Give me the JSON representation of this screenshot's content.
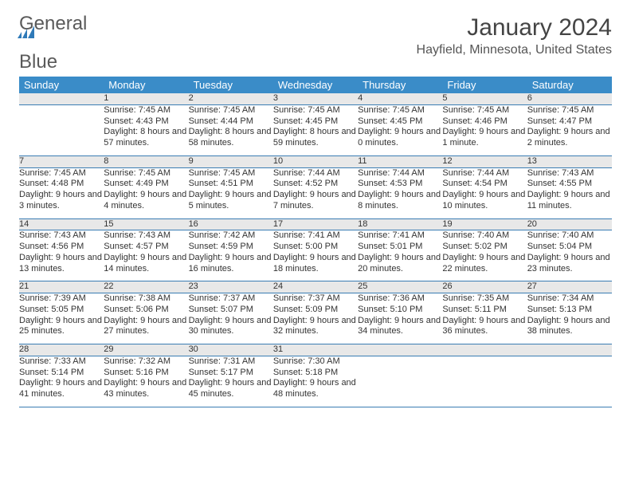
{
  "logo": {
    "text1": "General",
    "text2": "Blue"
  },
  "header": {
    "title": "January 2024",
    "location": "Hayfield, Minnesota, United States"
  },
  "colors": {
    "header_bg": "#3a8cc8",
    "header_text": "#ffffff",
    "daynum_bg": "#e8e8e8",
    "daynum_text": "#6a6a6a",
    "row_border": "#3a7db3",
    "body_text": "#333333",
    "logo_blue": "#2f7ab8",
    "logo_gray": "#5a5a5a"
  },
  "dayNames": [
    "Sunday",
    "Monday",
    "Tuesday",
    "Wednesday",
    "Thursday",
    "Friday",
    "Saturday"
  ],
  "weeks": [
    {
      "nums": [
        "",
        "1",
        "2",
        "3",
        "4",
        "5",
        "6"
      ],
      "cells": [
        {
          "sunrise": "",
          "sunset": "",
          "daylight": ""
        },
        {
          "sunrise": "Sunrise: 7:45 AM",
          "sunset": "Sunset: 4:43 PM",
          "daylight": "Daylight: 8 hours and 57 minutes."
        },
        {
          "sunrise": "Sunrise: 7:45 AM",
          "sunset": "Sunset: 4:44 PM",
          "daylight": "Daylight: 8 hours and 58 minutes."
        },
        {
          "sunrise": "Sunrise: 7:45 AM",
          "sunset": "Sunset: 4:45 PM",
          "daylight": "Daylight: 8 hours and 59 minutes."
        },
        {
          "sunrise": "Sunrise: 7:45 AM",
          "sunset": "Sunset: 4:45 PM",
          "daylight": "Daylight: 9 hours and 0 minutes."
        },
        {
          "sunrise": "Sunrise: 7:45 AM",
          "sunset": "Sunset: 4:46 PM",
          "daylight": "Daylight: 9 hours and 1 minute."
        },
        {
          "sunrise": "Sunrise: 7:45 AM",
          "sunset": "Sunset: 4:47 PM",
          "daylight": "Daylight: 9 hours and 2 minutes."
        }
      ]
    },
    {
      "nums": [
        "7",
        "8",
        "9",
        "10",
        "11",
        "12",
        "13"
      ],
      "cells": [
        {
          "sunrise": "Sunrise: 7:45 AM",
          "sunset": "Sunset: 4:48 PM",
          "daylight": "Daylight: 9 hours and 3 minutes."
        },
        {
          "sunrise": "Sunrise: 7:45 AM",
          "sunset": "Sunset: 4:49 PM",
          "daylight": "Daylight: 9 hours and 4 minutes."
        },
        {
          "sunrise": "Sunrise: 7:45 AM",
          "sunset": "Sunset: 4:51 PM",
          "daylight": "Daylight: 9 hours and 5 minutes."
        },
        {
          "sunrise": "Sunrise: 7:44 AM",
          "sunset": "Sunset: 4:52 PM",
          "daylight": "Daylight: 9 hours and 7 minutes."
        },
        {
          "sunrise": "Sunrise: 7:44 AM",
          "sunset": "Sunset: 4:53 PM",
          "daylight": "Daylight: 9 hours and 8 minutes."
        },
        {
          "sunrise": "Sunrise: 7:44 AM",
          "sunset": "Sunset: 4:54 PM",
          "daylight": "Daylight: 9 hours and 10 minutes."
        },
        {
          "sunrise": "Sunrise: 7:43 AM",
          "sunset": "Sunset: 4:55 PM",
          "daylight": "Daylight: 9 hours and 11 minutes."
        }
      ]
    },
    {
      "nums": [
        "14",
        "15",
        "16",
        "17",
        "18",
        "19",
        "20"
      ],
      "cells": [
        {
          "sunrise": "Sunrise: 7:43 AM",
          "sunset": "Sunset: 4:56 PM",
          "daylight": "Daylight: 9 hours and 13 minutes."
        },
        {
          "sunrise": "Sunrise: 7:43 AM",
          "sunset": "Sunset: 4:57 PM",
          "daylight": "Daylight: 9 hours and 14 minutes."
        },
        {
          "sunrise": "Sunrise: 7:42 AM",
          "sunset": "Sunset: 4:59 PM",
          "daylight": "Daylight: 9 hours and 16 minutes."
        },
        {
          "sunrise": "Sunrise: 7:41 AM",
          "sunset": "Sunset: 5:00 PM",
          "daylight": "Daylight: 9 hours and 18 minutes."
        },
        {
          "sunrise": "Sunrise: 7:41 AM",
          "sunset": "Sunset: 5:01 PM",
          "daylight": "Daylight: 9 hours and 20 minutes."
        },
        {
          "sunrise": "Sunrise: 7:40 AM",
          "sunset": "Sunset: 5:02 PM",
          "daylight": "Daylight: 9 hours and 22 minutes."
        },
        {
          "sunrise": "Sunrise: 7:40 AM",
          "sunset": "Sunset: 5:04 PM",
          "daylight": "Daylight: 9 hours and 23 minutes."
        }
      ]
    },
    {
      "nums": [
        "21",
        "22",
        "23",
        "24",
        "25",
        "26",
        "27"
      ],
      "cells": [
        {
          "sunrise": "Sunrise: 7:39 AM",
          "sunset": "Sunset: 5:05 PM",
          "daylight": "Daylight: 9 hours and 25 minutes."
        },
        {
          "sunrise": "Sunrise: 7:38 AM",
          "sunset": "Sunset: 5:06 PM",
          "daylight": "Daylight: 9 hours and 27 minutes."
        },
        {
          "sunrise": "Sunrise: 7:37 AM",
          "sunset": "Sunset: 5:07 PM",
          "daylight": "Daylight: 9 hours and 30 minutes."
        },
        {
          "sunrise": "Sunrise: 7:37 AM",
          "sunset": "Sunset: 5:09 PM",
          "daylight": "Daylight: 9 hours and 32 minutes."
        },
        {
          "sunrise": "Sunrise: 7:36 AM",
          "sunset": "Sunset: 5:10 PM",
          "daylight": "Daylight: 9 hours and 34 minutes."
        },
        {
          "sunrise": "Sunrise: 7:35 AM",
          "sunset": "Sunset: 5:11 PM",
          "daylight": "Daylight: 9 hours and 36 minutes."
        },
        {
          "sunrise": "Sunrise: 7:34 AM",
          "sunset": "Sunset: 5:13 PM",
          "daylight": "Daylight: 9 hours and 38 minutes."
        }
      ]
    },
    {
      "nums": [
        "28",
        "29",
        "30",
        "31",
        "",
        "",
        ""
      ],
      "cells": [
        {
          "sunrise": "Sunrise: 7:33 AM",
          "sunset": "Sunset: 5:14 PM",
          "daylight": "Daylight: 9 hours and 41 minutes."
        },
        {
          "sunrise": "Sunrise: 7:32 AM",
          "sunset": "Sunset: 5:16 PM",
          "daylight": "Daylight: 9 hours and 43 minutes."
        },
        {
          "sunrise": "Sunrise: 7:31 AM",
          "sunset": "Sunset: 5:17 PM",
          "daylight": "Daylight: 9 hours and 45 minutes."
        },
        {
          "sunrise": "Sunrise: 7:30 AM",
          "sunset": "Sunset: 5:18 PM",
          "daylight": "Daylight: 9 hours and 48 minutes."
        },
        {
          "sunrise": "",
          "sunset": "",
          "daylight": ""
        },
        {
          "sunrise": "",
          "sunset": "",
          "daylight": ""
        },
        {
          "sunrise": "",
          "sunset": "",
          "daylight": ""
        }
      ]
    }
  ]
}
